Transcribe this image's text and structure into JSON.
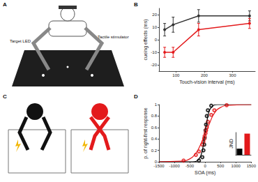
{
  "panels": [
    {
      "label": "A",
      "annotations": [
        "Target LED",
        "Tactile stimulator"
      ]
    },
    {
      "label": "C"
    }
  ],
  "chart_data": [
    {
      "type": "line",
      "title": "B",
      "x_label": "Touch-vision interval (ms)",
      "y_label": "cueing effects (ms)",
      "x": [
        60,
        90,
        180,
        360
      ],
      "xlim": [
        40,
        380
      ],
      "xticks": [
        100,
        200,
        300
      ],
      "ylim": [
        -25,
        25
      ],
      "yticks": [
        -20,
        -10,
        0,
        10,
        20
      ],
      "series": [
        {
          "color": "#333333",
          "marker": "circle",
          "values": [
            8,
            12,
            19,
            19
          ],
          "errors": [
            5,
            6,
            5,
            4
          ]
        },
        {
          "color": "#e31a1c",
          "marker": "circle",
          "values": [
            -10,
            -10,
            8,
            13
          ],
          "errors": [
            4,
            4,
            5,
            4
          ]
        }
      ]
    },
    {
      "type": "scatter",
      "title": "D",
      "x_label": "SOA (ms)",
      "y_label": "p. of right-first response",
      "xlim": [
        -1500,
        1500
      ],
      "xticks": [
        -1500,
        -1000,
        -500,
        0,
        500,
        1000,
        1500
      ],
      "ylim": [
        0,
        1
      ],
      "yticks": [
        0,
        0.2,
        0.4,
        0.6,
        0.8,
        1
      ],
      "series": [
        {
          "color": "#000000",
          "marker": "open_circle",
          "x": [
            -200,
            -90,
            -55,
            -30,
            -15,
            15,
            30,
            55,
            90,
            200
          ],
          "values": [
            0.02,
            0.08,
            0.2,
            0.3,
            0.42,
            0.55,
            0.65,
            0.8,
            0.9,
            0.98
          ],
          "fit": {
            "x": [
              -1500,
              -400,
              -200,
              -100,
              -50,
              0,
              50,
              100,
              200,
              400,
              1500
            ],
            "values": [
              0,
              0,
              0.05,
              0.18,
              0.33,
              0.5,
              0.67,
              0.82,
              0.95,
              1,
              1
            ]
          }
        },
        {
          "color": "#e31a1c",
          "marker": "open_circle",
          "x": [
            -700,
            -300,
            -200,
            -90,
            -55,
            -30,
            -15,
            15,
            30,
            55,
            90,
            200,
            300,
            700
          ],
          "values": [
            0.02,
            0.12,
            0.18,
            0.3,
            0.35,
            0.4,
            0.45,
            0.5,
            0.55,
            0.6,
            0.7,
            0.82,
            0.9,
            0.99
          ],
          "fit": {
            "x": [
              -1500,
              -800,
              -500,
              -300,
              -150,
              0,
              150,
              300,
              500,
              800,
              1500
            ],
            "values": [
              0,
              0.01,
              0.05,
              0.15,
              0.3,
              0.48,
              0.68,
              0.85,
              0.95,
              0.99,
              1
            ]
          }
        }
      ]
    },
    {
      "type": "bar",
      "y_label": "JND",
      "categories": [
        null,
        null
      ],
      "values": [
        55,
        190
      ],
      "colors": [
        "#000000",
        "#e31a1c"
      ],
      "ylim": [
        0,
        200
      ],
      "tick_labels": false
    }
  ]
}
